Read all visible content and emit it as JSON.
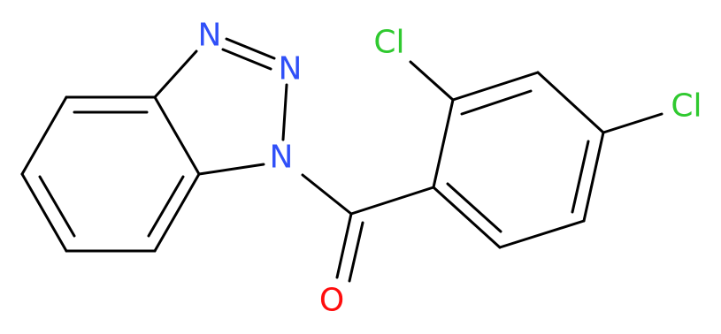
{
  "atoms": [
    "N",
    "N",
    "N",
    "Cl",
    "Cl",
    "O"
  ]
}
